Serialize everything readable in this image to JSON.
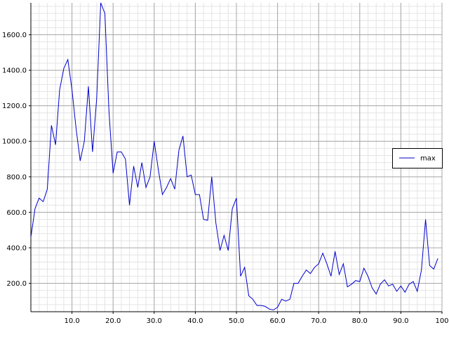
{
  "chart_data": {
    "type": "line",
    "title": "",
    "xlabel": "",
    "ylabel": "",
    "xlim": [
      0,
      100
    ],
    "ylim": [
      40,
      1780
    ],
    "grid": true,
    "minor_grid": true,
    "legend_position": "right",
    "x_ticks": [
      10,
      20,
      30,
      40,
      50,
      60,
      70,
      80,
      90,
      100
    ],
    "x_tick_labels": [
      "10.0",
      "20.0",
      "30.0",
      "40.0",
      "50.0",
      "60.0",
      "70.0",
      "80.0",
      "90.0",
      "100"
    ],
    "y_ticks": [
      200,
      400,
      600,
      800,
      1000,
      1200,
      1400,
      1600
    ],
    "y_tick_labels": [
      "200.0",
      "400.0",
      "600.0",
      "800.0",
      "1000.0",
      "1200.0",
      "1400.0",
      "1600.0"
    ],
    "series": [
      {
        "name": "max",
        "color": "#0000cc",
        "x": [
          0,
          1,
          2,
          3,
          4,
          5,
          6,
          7,
          8,
          9,
          10,
          11,
          12,
          13,
          14,
          15,
          16,
          17,
          18,
          19,
          20,
          21,
          22,
          23,
          24,
          25,
          26,
          27,
          28,
          29,
          30,
          31,
          32,
          33,
          34,
          35,
          36,
          37,
          38,
          39,
          40,
          41,
          42,
          43,
          44,
          45,
          46,
          47,
          48,
          49,
          50,
          51,
          52,
          53,
          54,
          55,
          56,
          57,
          58,
          59,
          60,
          61,
          62,
          63,
          64,
          65,
          66,
          67,
          68,
          69,
          70,
          71,
          72,
          73,
          74,
          75,
          76,
          77,
          78,
          79,
          80,
          81,
          82,
          83,
          84,
          85,
          86,
          87,
          88,
          89,
          90,
          91,
          92,
          93,
          94,
          95,
          96,
          97,
          98,
          99
        ],
        "values": [
          460,
          620,
          680,
          660,
          730,
          1090,
          980,
          1290,
          1410,
          1460,
          1290,
          1070,
          890,
          1000,
          1310,
          940,
          1240,
          1780,
          1720,
          1170,
          820,
          940,
          940,
          900,
          640,
          860,
          740,
          880,
          740,
          800,
          1000,
          840,
          700,
          740,
          790,
          730,
          950,
          1030,
          800,
          810,
          700,
          700,
          560,
          555,
          800,
          540,
          385,
          470,
          385,
          620,
          680,
          240,
          290,
          130,
          110,
          75,
          75,
          70,
          55,
          50,
          65,
          110,
          100,
          110,
          200,
          200,
          240,
          275,
          255,
          290,
          310,
          370,
          310,
          240,
          380,
          250,
          310,
          180,
          195,
          215,
          210,
          285,
          240,
          175,
          140,
          195,
          220,
          185,
          195,
          155,
          185,
          150,
          195,
          210,
          155,
          275,
          560,
          300,
          280,
          340
        ]
      }
    ]
  }
}
